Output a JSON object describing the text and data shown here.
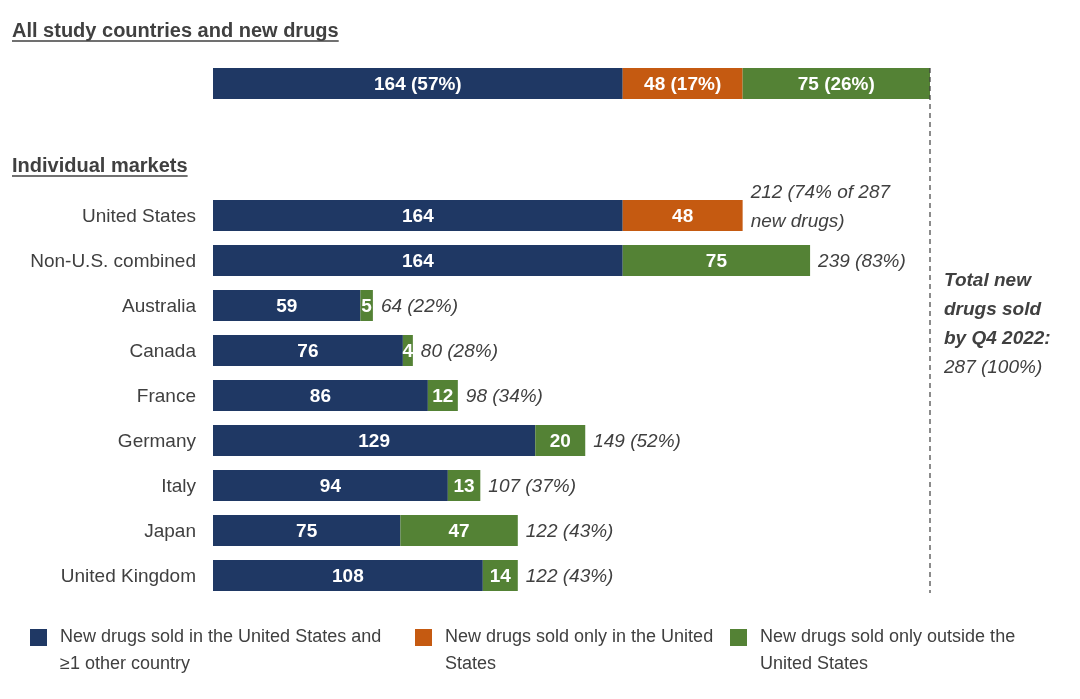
{
  "chart_data": [
    {
      "type": "bar",
      "orientation": "horizontal",
      "stacked": true,
      "title": "All study countries and new drugs",
      "categories": [
        null
      ],
      "tick_labels": false,
      "legend": false,
      "series": [
        {
          "color": "#1f3864",
          "values": [
            164
          ],
          "value_labels": [
            "164 (57%)"
          ]
        },
        {
          "color": "#c55a11",
          "values": [
            48
          ],
          "value_labels": [
            "48 (17%)"
          ]
        },
        {
          "color": "#548235",
          "values": [
            75
          ],
          "value_labels": [
            "75 (26%)"
          ]
        }
      ]
    },
    {
      "type": "bar",
      "orientation": "horizontal",
      "stacked": true,
      "title": "Individual markets",
      "tick_labels": "y",
      "legend": "bottom",
      "data_labels": true,
      "categories": [
        "United States",
        "Non-U.S. combined",
        "Australia",
        "Canada",
        "France",
        "Germany",
        "Italy",
        "Japan",
        "United Kingdom"
      ],
      "series": [
        {
          "name": "New drugs sold in the United States and ≥1 other country",
          "color": "#1f3864",
          "values": [
            164,
            164,
            59,
            76,
            86,
            129,
            94,
            75,
            108
          ]
        },
        {
          "name": "New drugs sold only in the United States",
          "color": "#c55a11",
          "values": [
            48,
            null,
            null,
            null,
            null,
            null,
            null,
            null,
            null
          ]
        },
        {
          "name": "New drugs sold only outside the United States",
          "color": "#548235",
          "values": [
            null,
            75,
            5,
            4,
            12,
            20,
            13,
            47,
            14
          ]
        }
      ],
      "totals": [
        "212 (74% of 287 new drugs)",
        "239 (83%)",
        "64 (22%)",
        "80 (28%)",
        "98 (34%)",
        "149 (52%)",
        "107 (37%)",
        "122 (43%)",
        "122 (43%)"
      ],
      "ref_lines": [
        {
          "axis": "x",
          "value": 287,
          "label": "Total new drugs sold by Q4 2022: 287 (100%)",
          "line_style": "dashed",
          "color": "#404040"
        }
      ]
    }
  ]
}
